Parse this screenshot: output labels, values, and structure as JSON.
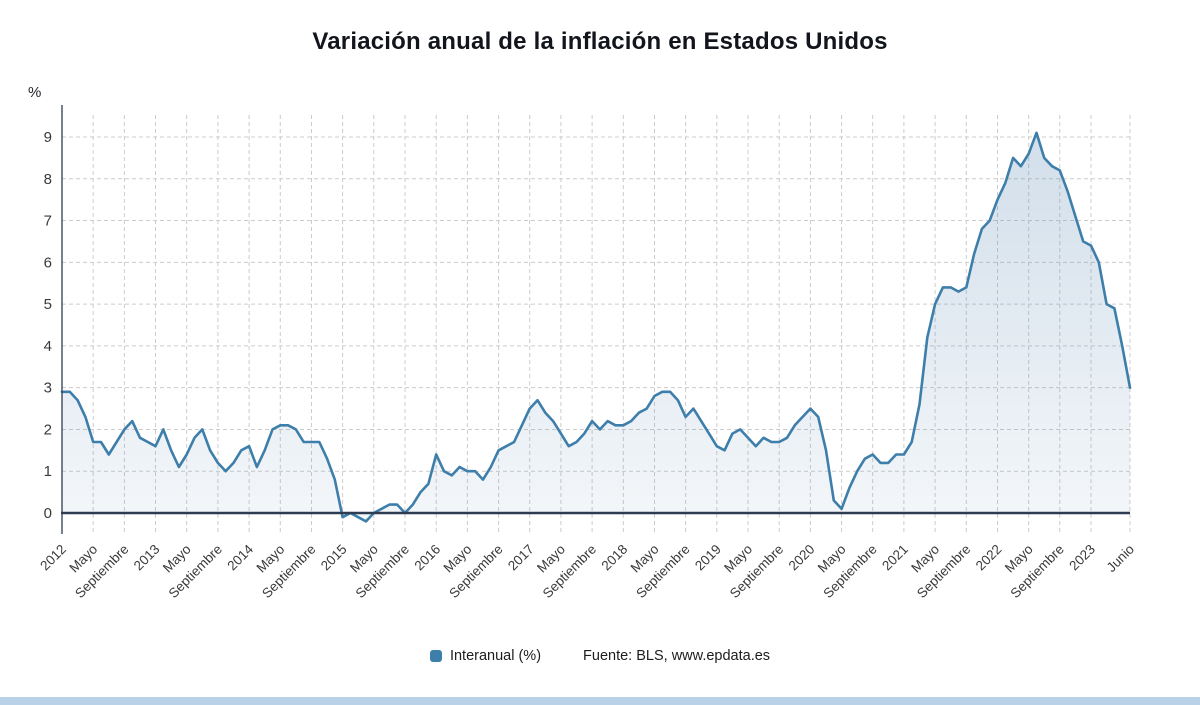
{
  "title": "Variación anual de la inflación en Estados Unidos",
  "y_axis_unit": "%",
  "legend": {
    "series_label": "Interanual (%)",
    "source_prefix": "Fuente: BLS, ",
    "source_link": "www.epdata.es"
  },
  "colors": {
    "line": "#3d7eaa",
    "fill_top": "rgba(93,138,180,0.28)",
    "fill_bottom": "rgba(93,138,180,0.07)",
    "zero_line": "#2e3c52",
    "axis": "#2e3c52",
    "grid": "#cccccc",
    "text": "#3a3a3a",
    "footer_bar": "#b9d2e8"
  },
  "chart_data": {
    "type": "area",
    "title": "Variación anual de la inflación en Estados Unidos",
    "ylabel": "%",
    "ylim": [
      -0.5,
      9.5
    ],
    "y_ticks": [
      0,
      1,
      2,
      3,
      4,
      5,
      6,
      7,
      8,
      9
    ],
    "grid": true,
    "legend_position": "bottom",
    "x_tick_positions": [
      0,
      4,
      8,
      12,
      16,
      20,
      24,
      28,
      32,
      36,
      40,
      44,
      48,
      52,
      56,
      60,
      64,
      68,
      72,
      76,
      80,
      84,
      88,
      92,
      96,
      100,
      104,
      108,
      112,
      116,
      120,
      124,
      128,
      132,
      137
    ],
    "x_tick_labels": [
      "2012",
      "Mayo",
      "Septiembre",
      "2013",
      "Mayo",
      "Septiembre",
      "2014",
      "Mayo",
      "Septiembre",
      "2015",
      "Mayo",
      "Septiembre",
      "2016",
      "Mayo",
      "Septiembre",
      "2017",
      "Mayo",
      "Septiembre",
      "2018",
      "Mayo",
      "Septiembre",
      "2019",
      "Mayo",
      "Septiembre",
      "2020",
      "Mayo",
      "Septiembre",
      "2021",
      "Mayo",
      "Septiembre",
      "2022",
      "Mayo",
      "Septiembre",
      "2023",
      "Junio"
    ],
    "series": [
      {
        "name": "Interanual (%)",
        "values": [
          2.9,
          2.9,
          2.7,
          2.3,
          1.7,
          1.7,
          1.4,
          1.7,
          2.0,
          2.2,
          1.8,
          1.7,
          1.6,
          2.0,
          1.5,
          1.1,
          1.4,
          1.8,
          2.0,
          1.5,
          1.2,
          1.0,
          1.2,
          1.5,
          1.6,
          1.1,
          1.5,
          2.0,
          2.1,
          2.1,
          2.0,
          1.7,
          1.7,
          1.7,
          1.3,
          0.8,
          -0.1,
          0.0,
          -0.1,
          -0.2,
          0.0,
          0.1,
          0.2,
          0.2,
          0.0,
          0.2,
          0.5,
          0.7,
          1.4,
          1.0,
          0.9,
          1.1,
          1.0,
          1.0,
          0.8,
          1.1,
          1.5,
          1.6,
          1.7,
          2.1,
          2.5,
          2.7,
          2.4,
          2.2,
          1.9,
          1.6,
          1.7,
          1.9,
          2.2,
          2.0,
          2.2,
          2.1,
          2.1,
          2.2,
          2.4,
          2.5,
          2.8,
          2.9,
          2.9,
          2.7,
          2.3,
          2.5,
          2.2,
          1.9,
          1.6,
          1.5,
          1.9,
          2.0,
          1.8,
          1.6,
          1.8,
          1.7,
          1.7,
          1.8,
          2.1,
          2.3,
          2.5,
          2.3,
          1.5,
          0.3,
          0.1,
          0.6,
          1.0,
          1.3,
          1.4,
          1.2,
          1.2,
          1.4,
          1.4,
          1.7,
          2.6,
          4.2,
          5.0,
          5.4,
          5.4,
          5.3,
          5.4,
          6.2,
          6.8,
          7.0,
          7.5,
          7.9,
          8.5,
          8.3,
          8.6,
          9.1,
          8.5,
          8.3,
          8.2,
          7.7,
          7.1,
          6.5,
          6.4,
          6.0,
          5.0,
          4.9,
          4.0,
          3.0
        ]
      }
    ]
  }
}
